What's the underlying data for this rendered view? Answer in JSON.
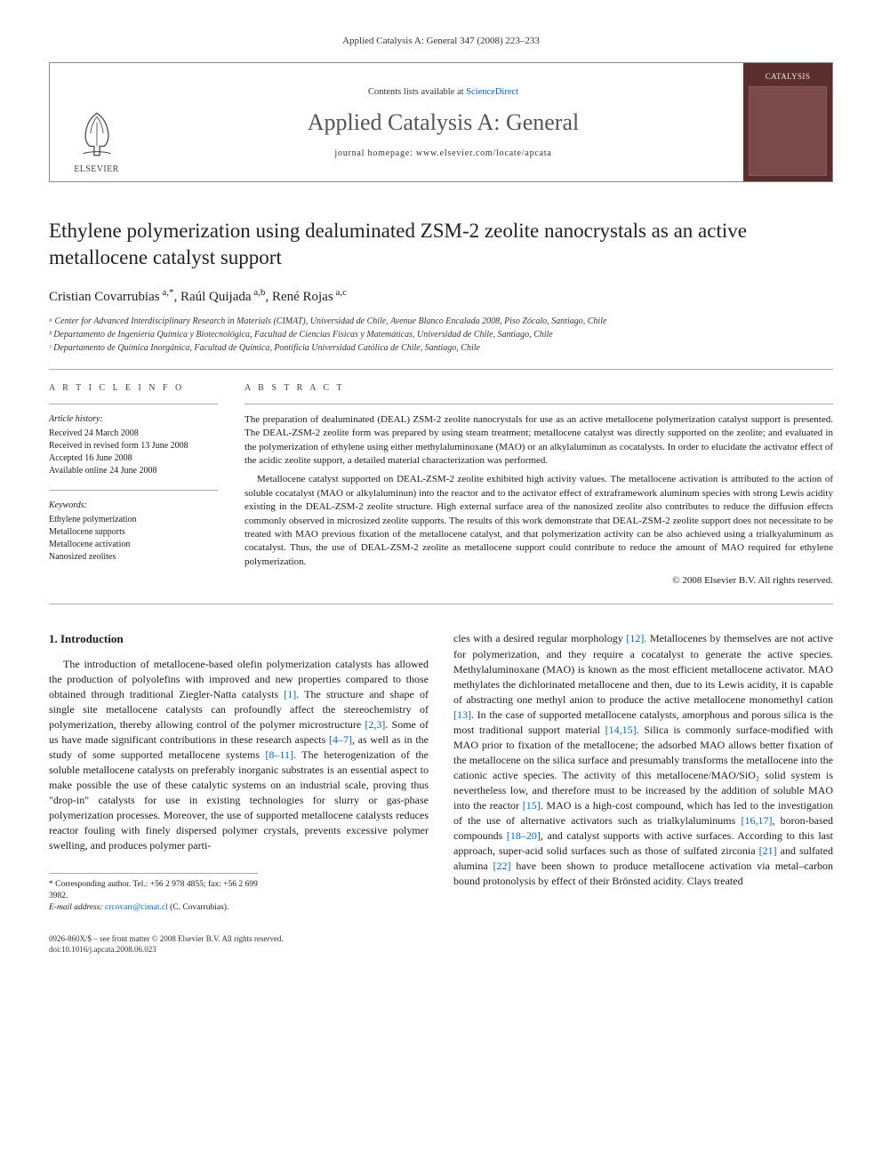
{
  "running_header": "Applied Catalysis A: General 347 (2008) 223–233",
  "banner": {
    "publisher_label": "ELSEVIER",
    "contents_prefix": "Contents lists available at ",
    "contents_link": "ScienceDirect",
    "journal_name": "Applied Catalysis A: General",
    "homepage_prefix": "journal homepage: ",
    "homepage_url": "www.elsevier.com/locate/apcata",
    "cover_label": "CATALYSIS"
  },
  "title": "Ethylene polymerization using dealuminated ZSM-2 zeolite nanocrystals as an active metallocene catalyst support",
  "authors_html": "Cristian Covarrubias <sup>a,*</sup>, Raúl Quijada <sup>a,b</sup>, René Rojas <sup>a,c</sup>",
  "affiliations": [
    "ᵃ Center for Advanced Interdisciplinary Research in Materials (CIMAT), Universidad de Chile, Avenue Blanco Encalada 2008, Piso Zócalo, Santiago, Chile",
    "ᵇ Departamento de Ingeniería Química y Biotecnológica, Facultad de Ciencias Físicas y Matemáticas, Universidad de Chile, Santiago, Chile",
    "ᶜ Departamento de Química Inorgánica, Facultad de Química, Pontificia Universidad Católica de Chile, Santiago, Chile"
  ],
  "article_info": {
    "heading": "A R T I C L E  I N F O",
    "history_label": "Article history:",
    "history": [
      "Received 24 March 2008",
      "Received in revised form 13 June 2008",
      "Accepted 16 June 2008",
      "Available online 24 June 2008"
    ],
    "keywords_label": "Keywords:",
    "keywords": [
      "Ethylene polymerization",
      "Metallocene supports",
      "Metallocene activation",
      "Nanosized zeolites"
    ]
  },
  "abstract": {
    "heading": "A B S T R A C T",
    "p1": "The preparation of dealuminated (DEAL) ZSM-2 zeolite nanocrystals for use as an active metallocene polymerization catalyst support is presented. The DEAL-ZSM-2 zeolite form was prepared by using steam treatment; metallocene catalyst was directly supported on the zeolite; and evaluated in the polymerization of ethylene using either methylaluminoxane (MAO) or an alkylaluminun as cocatalysts. In order to elucidate the activator effect of the acidic zeolite support, a detailed material characterization was performed.",
    "p2": "Metallocene catalyst supported on DEAL-ZSM-2 zeolite exhibited high activity values. The metallocene activation is attributed to the action of soluble cocatalyst (MAO or alkylaluminun) into the reactor and to the activator effect of extraframework aluminum species with strong Lewis acidity existing in the DEAL-ZSM-2 zeolite structure. High external surface area of the nanosized zeolite also contributes to reduce the diffusion effects commonly observed in microsized zeolite supports. The results of this work demonstrate that DEAL-ZSM-2 zeolite support does not necessitate to be treated with MAO previous fixation of the metallocene catalyst, and that polymerization activity can be also achieved using a trialkyaluminum as cocatalyst. Thus, the use of DEAL-ZSM-2 zeolite as metallocene support could contribute to reduce the amount of MAO required for ethylene polymerization.",
    "copyright": "© 2008 Elsevier B.V. All rights reserved."
  },
  "body": {
    "section_heading": "1. Introduction",
    "col1": "The introduction of metallocene-based olefin polymerization catalysts has allowed the production of polyolefins with improved and new properties compared to those obtained through traditional Ziegler-Natta catalysts [1]. The structure and shape of single site metallocene catalysts can profoundly affect the stereochemistry of polymerization, thereby allowing control of the polymer microstructure [2,3]. Some of us have made significant contributions in these research aspects [4–7], as well as in the study of some supported metallocene systems [8–11]. The heterogenization of the soluble metallocene catalysts on preferably inorganic substrates is an essential aspect to make possible the use of these catalytic systems on an industrial scale, proving thus \"drop-in\" catalysts for use in existing technologies for slurry or gas-phase polymerization processes. Moreover, the use of supported metallocene catalysts reduces reactor fouling with finely dispersed polymer crystals, prevents excessive polymer swelling, and produces polymer parti-",
    "col2": "cles with a desired regular morphology [12]. Metallocenes by themselves are not active for polymerization, and they require a cocatalyst to generate the active species. Methylaluminoxane (MAO) is known as the most efficient metallocene activator. MAO methylates the dichlorinated metallocene and then, due to its Lewis acidity, it is capable of abstracting one methyl anion to produce the active metallocene monomethyl cation [13]. In the case of supported metallocene catalysts, amorphous and porous silica is the most traditional support material [14,15]. Silica is commonly surface-modified with MAO prior to fixation of the metallocene; the adsorbed MAO allows better fixation of the metallocene on the silica surface and presumably transforms the metallocene into the cationic active species. The activity of this metallocene/MAO/SiO₂ solid system is nevertheless low, and therefore must to be increased by the addition of soluble MAO into the reactor [15]. MAO is a high-cost compound, which has led to the investigation of the use of alternative activators such as trialkylaluminums [16,17], boron-based compounds [18–20], and catalyst supports with active surfaces. According to this last approach, super-acid solid surfaces such as those of sulfated zirconia [21] and sulfated alumina [22] have been shown to produce metallocene activation via metal–carbon bound protonolysis by effect of their Brönsted acidity. Clays treated"
  },
  "footnote": {
    "corr": "* Corresponding author. Tel.: +56 2 978 4855; fax: +56 2 699 3982.",
    "email_label": "E-mail address: ",
    "email": "crcovarr@cimat.cl",
    "email_suffix": " (C. Covarrubias)."
  },
  "footer": {
    "left": "0926-860X/$ – see front matter © 2008 Elsevier B.V. All rights reserved.",
    "doi": "doi:10.1016/j.apcata.2008.06.023"
  },
  "colors": {
    "link": "#0066cc",
    "text": "#1a1a1a",
    "border": "#888888",
    "cover_bg": "#5a2e2e",
    "cover_text": "#f5e8d0"
  }
}
